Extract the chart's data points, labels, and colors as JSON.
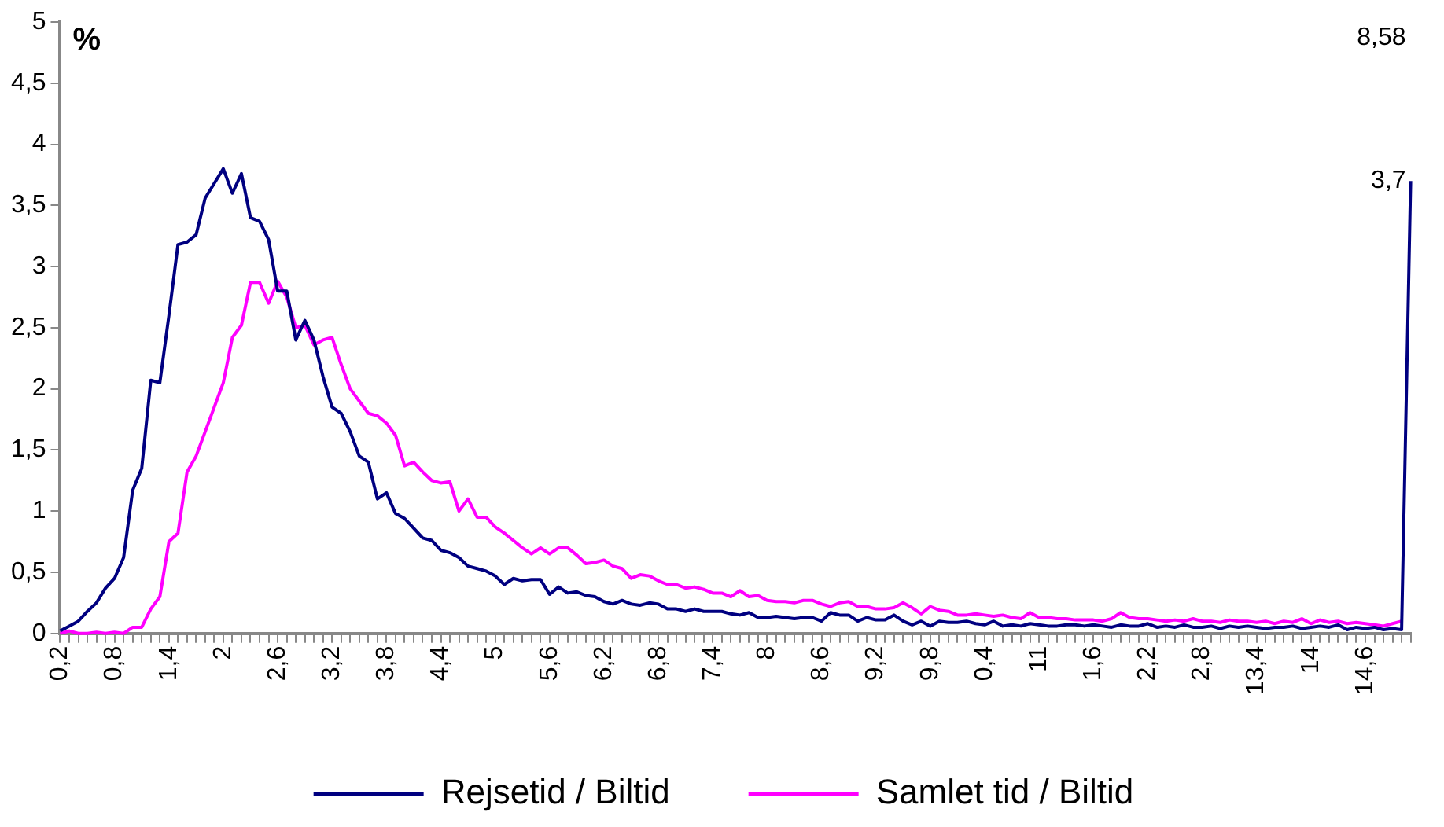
{
  "chart_data": {
    "type": "line",
    "ylabel": "%",
    "categories": [
      "0,2",
      null,
      null,
      null,
      null,
      null,
      "0,8",
      null,
      null,
      null,
      null,
      null,
      "1,4",
      null,
      null,
      null,
      null,
      null,
      "2",
      null,
      null,
      null,
      null,
      null,
      "2,6",
      null,
      null,
      null,
      null,
      null,
      "3,2",
      null,
      null,
      null,
      null,
      null,
      "3,8",
      null,
      null,
      null,
      null,
      null,
      "4,4",
      null,
      null,
      null,
      null,
      null,
      "5",
      null,
      null,
      null,
      null,
      null,
      "5,6",
      null,
      null,
      null,
      null,
      null,
      "6,2",
      null,
      null,
      null,
      null,
      null,
      "6,8",
      null,
      null,
      null,
      null,
      null,
      "7,4",
      null,
      null,
      null,
      null,
      null,
      "8",
      null,
      null,
      null,
      null,
      null,
      "8,6",
      null,
      null,
      null,
      null,
      null,
      "9,2",
      null,
      null,
      null,
      null,
      null,
      "9,8",
      null,
      null,
      null,
      null,
      null,
      "0,4",
      null,
      null,
      null,
      null,
      null,
      "11",
      null,
      null,
      null,
      null,
      null,
      "1,6",
      null,
      null,
      null,
      null,
      null,
      "2,2",
      null,
      null,
      null,
      null,
      null,
      "2,8",
      null,
      null,
      null,
      null,
      null,
      "13,4",
      null,
      null,
      null,
      null,
      null,
      "14",
      null,
      null,
      null,
      null,
      null,
      "14,6",
      null,
      null,
      null,
      null,
      null
    ],
    "series": [
      {
        "name": "Rejsetid / Biltid",
        "color": "#000080",
        "values": [
          0.02,
          0.06,
          0.1,
          0.18,
          0.25,
          0.37,
          0.45,
          0.62,
          1.17,
          1.35,
          2.07,
          2.05,
          2.6,
          3.18,
          3.2,
          3.26,
          3.56,
          3.68,
          3.8,
          3.6,
          3.76,
          3.4,
          3.37,
          3.22,
          2.8,
          2.8,
          2.4,
          2.56,
          2.4,
          2.1,
          1.85,
          1.8,
          1.65,
          1.45,
          1.4,
          1.1,
          1.15,
          0.98,
          0.94,
          0.86,
          0.78,
          0.76,
          0.68,
          0.66,
          0.62,
          0.55,
          0.53,
          0.51,
          0.47,
          0.4,
          0.45,
          0.43,
          0.44,
          0.44,
          0.32,
          0.38,
          0.33,
          0.34,
          0.31,
          0.3,
          0.26,
          0.24,
          0.27,
          0.24,
          0.23,
          0.25,
          0.24,
          0.2,
          0.2,
          0.18,
          0.2,
          0.18,
          0.18,
          0.18,
          0.16,
          0.15,
          0.17,
          0.13,
          0.13,
          0.14,
          0.13,
          0.12,
          0.13,
          0.13,
          0.1,
          0.17,
          0.15,
          0.15,
          0.1,
          0.13,
          0.11,
          0.11,
          0.15,
          0.1,
          0.07,
          0.1,
          0.06,
          0.1,
          0.09,
          0.09,
          0.1,
          0.08,
          0.07,
          0.1,
          0.06,
          0.07,
          0.06,
          0.08,
          0.07,
          0.06,
          0.06,
          0.07,
          0.07,
          0.06,
          0.07,
          0.06,
          0.05,
          0.07,
          0.06,
          0.06,
          0.08,
          0.05,
          0.06,
          0.05,
          0.07,
          0.05,
          0.05,
          0.06,
          0.04,
          0.06,
          0.05,
          0.06,
          0.05,
          0.04,
          0.05,
          0.05,
          0.06,
          0.04,
          0.05,
          0.06,
          0.05,
          0.07,
          0.03,
          0.05,
          0.04,
          0.05,
          0.03,
          0.04,
          0.03,
          3.7
        ],
        "value_labels": [
          null,
          null,
          null,
          null,
          null,
          null,
          null,
          null,
          null,
          null,
          null,
          null,
          null,
          null,
          null,
          null,
          null,
          null,
          null,
          null,
          null,
          null,
          null,
          null,
          null,
          null,
          null,
          null,
          null,
          null,
          null,
          null,
          null,
          null,
          null,
          null,
          null,
          null,
          null,
          null,
          null,
          null,
          null,
          null,
          null,
          null,
          null,
          null,
          null,
          null,
          null,
          null,
          null,
          null,
          null,
          null,
          null,
          null,
          null,
          null,
          null,
          null,
          null,
          null,
          null,
          null,
          null,
          null,
          null,
          null,
          null,
          null,
          null,
          null,
          null,
          null,
          null,
          null,
          null,
          null,
          null,
          null,
          null,
          null,
          null,
          null,
          null,
          null,
          null,
          null,
          null,
          null,
          null,
          null,
          null,
          null,
          null,
          null,
          null,
          null,
          null,
          null,
          null,
          null,
          null,
          null,
          null,
          null,
          null,
          null,
          null,
          null,
          null,
          null,
          null,
          null,
          null,
          null,
          null,
          null,
          null,
          null,
          null,
          null,
          null,
          null,
          null,
          null,
          null,
          null,
          null,
          null,
          null,
          null,
          null,
          null,
          null,
          null,
          null,
          null,
          null,
          null,
          null,
          null,
          null,
          null,
          null,
          null,
          null,
          "3,7"
        ]
      },
      {
        "name": "Samlet tid / Biltid",
        "color": "#ff00ff",
        "values": [
          0.0,
          0.02,
          0.0,
          0.0,
          0.01,
          0.0,
          0.01,
          0.0,
          0.05,
          0.05,
          0.2,
          0.3,
          0.75,
          0.82,
          1.32,
          1.45,
          1.65,
          1.85,
          2.05,
          2.42,
          2.52,
          2.87,
          2.87,
          2.7,
          2.88,
          2.75,
          2.5,
          2.52,
          2.36,
          2.4,
          2.42,
          2.2,
          2.0,
          1.9,
          1.8,
          1.78,
          1.72,
          1.62,
          1.37,
          1.4,
          1.32,
          1.25,
          1.23,
          1.24,
          1.0,
          1.1,
          0.95,
          0.95,
          0.87,
          0.82,
          0.76,
          0.7,
          0.65,
          0.7,
          0.65,
          0.7,
          0.7,
          0.64,
          0.57,
          0.58,
          0.6,
          0.55,
          0.53,
          0.45,
          0.48,
          0.47,
          0.43,
          0.4,
          0.4,
          0.37,
          0.38,
          0.36,
          0.33,
          0.33,
          0.3,
          0.35,
          0.3,
          0.31,
          0.27,
          0.26,
          0.26,
          0.25,
          0.27,
          0.27,
          0.24,
          0.22,
          0.25,
          0.26,
          0.22,
          0.22,
          0.2,
          0.2,
          0.21,
          0.25,
          0.21,
          0.16,
          0.22,
          0.19,
          0.18,
          0.15,
          0.15,
          0.16,
          0.15,
          0.14,
          0.15,
          0.13,
          0.12,
          0.17,
          0.13,
          0.13,
          0.12,
          0.12,
          0.11,
          0.11,
          0.11,
          0.1,
          0.12,
          0.17,
          0.13,
          0.12,
          0.12,
          0.11,
          0.1,
          0.11,
          0.1,
          0.12,
          0.1,
          0.1,
          0.09,
          0.11,
          0.1,
          0.1,
          0.09,
          0.1,
          0.08,
          0.1,
          0.09,
          0.12,
          0.08,
          0.11,
          0.09,
          0.1,
          0.08,
          0.09,
          0.08,
          0.07,
          0.06,
          0.08,
          0.1,
          null
        ],
        "value_labels": [
          null,
          null,
          null,
          null,
          null,
          null,
          null,
          null,
          null,
          null,
          null,
          null,
          null,
          null,
          null,
          null,
          null,
          null,
          null,
          null,
          null,
          null,
          null,
          null,
          null,
          null,
          null,
          null,
          null,
          null,
          null,
          null,
          null,
          null,
          null,
          null,
          null,
          null,
          null,
          null,
          null,
          null,
          null,
          null,
          null,
          null,
          null,
          null,
          null,
          null,
          null,
          null,
          null,
          null,
          null,
          null,
          null,
          null,
          null,
          null,
          null,
          null,
          null,
          null,
          null,
          null,
          null,
          null,
          null,
          null,
          null,
          null,
          null,
          null,
          null,
          null,
          null,
          null,
          null,
          null,
          null,
          null,
          null,
          null,
          null,
          null,
          null,
          null,
          null,
          null,
          null,
          null,
          null,
          null,
          null,
          null,
          null,
          null,
          null,
          null,
          null,
          null,
          null,
          null,
          null,
          null,
          null,
          null,
          null,
          null,
          null,
          null,
          null,
          null,
          null,
          null,
          null,
          null,
          null,
          null,
          null,
          null,
          null,
          null,
          null,
          null,
          null,
          null,
          null,
          null,
          null,
          null,
          null,
          null,
          null,
          null,
          null,
          null,
          null,
          null,
          null,
          null,
          null,
          null,
          null,
          null,
          null,
          null,
          null,
          "8,58"
        ]
      }
    ],
    "ylim": [
      0,
      5
    ],
    "yticks": [
      0,
      {
        "value": 0.5,
        "label": "0,5"
      },
      1,
      {
        "value": 1.5,
        "label": "1,5"
      },
      2,
      {
        "value": 2.5,
        "label": "2,5"
      },
      3,
      {
        "value": 3.5,
        "label": "3,5"
      },
      4,
      {
        "value": 4.5,
        "label": "4,5"
      },
      5
    ],
    "grid": false,
    "legend": "bottom",
    "marker": "none",
    "line_style": "solid"
  }
}
